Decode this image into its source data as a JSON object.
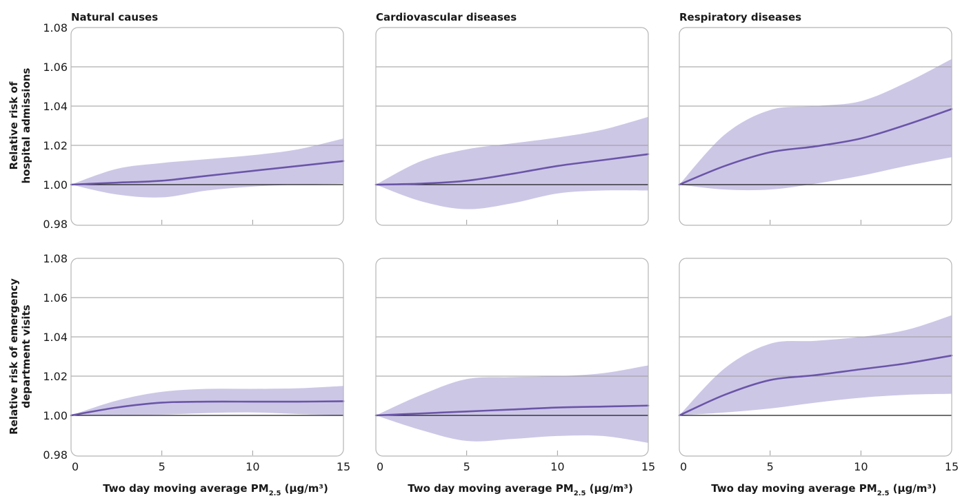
{
  "colors": {
    "line": "#6a55a8",
    "band": "#cdc7e6",
    "grid": "#9a9a9a",
    "reference": "#1a1a1a",
    "frame": "#b5b5b5"
  },
  "chart_data": {
    "type": "line",
    "layout": "2x3 small multiples",
    "xlim": [
      0,
      15
    ],
    "ylim": [
      0.98,
      1.08
    ],
    "xticks": [
      0,
      5,
      10,
      15
    ],
    "yticks": [
      0.98,
      1.0,
      1.02,
      1.04,
      1.06,
      1.08
    ],
    "ytick_labels": [
      "0.98",
      "1.00",
      "1.02",
      "1.04",
      "1.06",
      "1.08"
    ],
    "xtick_labels": [
      "0",
      "5",
      "10",
      "15"
    ],
    "grid": "horizontal",
    "reference_line": 1.0,
    "x": [
      0,
      2.5,
      5,
      7.5,
      10,
      12.5,
      15
    ],
    "columns": [
      "Natural causes",
      "Cardiovascular diseases",
      "Respiratory diseases"
    ],
    "row_labels": [
      [
        "Relative risk of",
        "hospital admissions"
      ],
      [
        "Relative risk of emergency",
        "department visits"
      ]
    ],
    "xlabel": {
      "main": "Two day moving average PM",
      "sub": "2.5",
      "unit": " (µg/m³)"
    },
    "panels": [
      {
        "row": 0,
        "col": 0,
        "estimate": [
          1.0,
          1.001,
          1.002,
          1.0045,
          1.007,
          1.0095,
          1.012
        ],
        "lower": [
          1.0,
          0.995,
          0.9935,
          0.997,
          0.999,
          1.0,
          1.0005
        ],
        "upper": [
          1.0,
          1.008,
          1.011,
          1.013,
          1.015,
          1.018,
          1.0235
        ]
      },
      {
        "row": 0,
        "col": 1,
        "estimate": [
          1.0,
          1.0005,
          1.002,
          1.0055,
          1.0095,
          1.0125,
          1.0155
        ],
        "lower": [
          1.0,
          0.9915,
          0.9875,
          0.9905,
          0.9955,
          0.997,
          0.997
        ],
        "upper": [
          1.0,
          1.012,
          1.018,
          1.021,
          1.024,
          1.028,
          1.0345
        ]
      },
      {
        "row": 0,
        "col": 2,
        "estimate": [
          1.0,
          1.0095,
          1.0165,
          1.0195,
          1.0235,
          1.0305,
          1.0385
        ],
        "lower": [
          1.0,
          0.9975,
          0.9975,
          1.0005,
          1.0045,
          1.0095,
          1.014
        ],
        "upper": [
          1.0,
          1.0255,
          1.038,
          1.04,
          1.0425,
          1.052,
          1.064
        ]
      },
      {
        "row": 1,
        "col": 0,
        "estimate": [
          1.0,
          1.004,
          1.0065,
          1.007,
          1.007,
          1.007,
          1.0072
        ],
        "lower": [
          1.0,
          1.0002,
          1.0004,
          1.0012,
          1.0015,
          1.0007,
          1.0
        ],
        "upper": [
          1.0,
          1.0075,
          1.012,
          1.0135,
          1.0135,
          1.0138,
          1.015
        ]
      },
      {
        "row": 1,
        "col": 1,
        "estimate": [
          1.0,
          1.001,
          1.002,
          1.003,
          1.004,
          1.0045,
          1.005
        ],
        "lower": [
          1.0,
          0.9925,
          0.987,
          0.988,
          0.9895,
          0.9895,
          0.986
        ],
        "upper": [
          1.0,
          1.0105,
          1.0185,
          1.0195,
          1.02,
          1.0215,
          1.0255
        ]
      },
      {
        "row": 1,
        "col": 2,
        "estimate": [
          1.0,
          1.0105,
          1.018,
          1.0205,
          1.0235,
          1.0265,
          1.0305
        ],
        "lower": [
          1.0,
          1.0015,
          1.0035,
          1.0065,
          1.009,
          1.0105,
          1.011
        ],
        "upper": [
          1.0,
          1.024,
          1.0365,
          1.038,
          1.04,
          1.0435,
          1.051
        ]
      }
    ]
  }
}
